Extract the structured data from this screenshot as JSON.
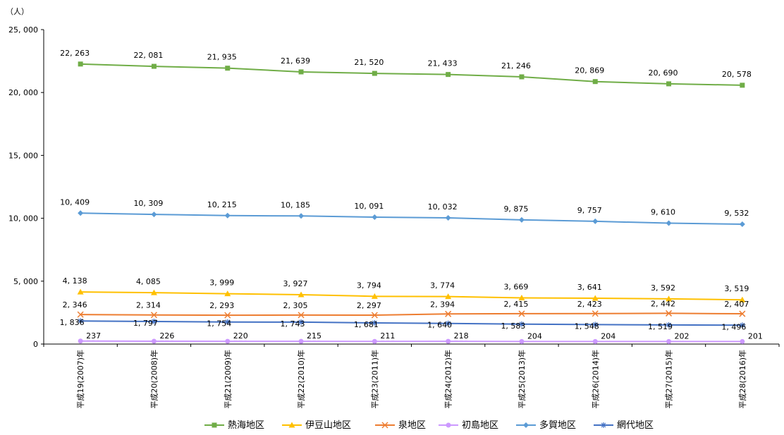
{
  "chart_data": {
    "type": "line",
    "unit_label": "（人）",
    "title": "",
    "xlabel": "",
    "ylabel": "",
    "ylim": [
      0,
      25000
    ],
    "yticks": [
      "0",
      "5, 000",
      "10, 000",
      "15, 000",
      "20, 000",
      "25, 000"
    ],
    "ytick_values": [
      0,
      5000,
      10000,
      15000,
      20000,
      25000
    ],
    "grid": false,
    "legend_position": "bottom",
    "categories": [
      "平成19(2007)年",
      "平成20(2008)年",
      "平成21(2009)年",
      "平成22(2010)年",
      "平成23(2011)年",
      "平成24(2012)年",
      "平成25(2013)年",
      "平成26(2014)年",
      "平成27(2015)年",
      "平成28(2016)年"
    ],
    "series": [
      {
        "name": "熱海地区",
        "color": "#70ad47",
        "marker": "square",
        "values": [
          22263,
          22081,
          21935,
          21639,
          21520,
          21433,
          21246,
          20869,
          20690,
          20578
        ],
        "labels": [
          "22, 263",
          "22, 081",
          "21, 935",
          "21, 639",
          "21, 520",
          "21, 433",
          "21, 246",
          "20, 869",
          "20, 690",
          "20, 578"
        ]
      },
      {
        "name": "伊豆山地区",
        "color": "#ffc000",
        "marker": "triangle",
        "values": [
          4138,
          4085,
          3999,
          3927,
          3794,
          3774,
          3669,
          3641,
          3592,
          3519
        ],
        "labels": [
          "4, 138",
          "4, 085",
          "3, 999",
          "3, 927",
          "3, 794",
          "3, 774",
          "3, 669",
          "3, 641",
          "3, 592",
          "3, 519"
        ]
      },
      {
        "name": "泉地区",
        "color": "#ed7d31",
        "marker": "x",
        "values": [
          2346,
          2314,
          2293,
          2305,
          2297,
          2394,
          2415,
          2423,
          2442,
          2407
        ],
        "labels": [
          "2, 346",
          "2, 314",
          "2, 293",
          "2, 305",
          "2, 297",
          "2, 394",
          "2, 415",
          "2, 423",
          "2, 442",
          "2, 407"
        ]
      },
      {
        "name": "初島地区",
        "color": "#cc99ff",
        "marker": "circle",
        "values": [
          237,
          226,
          220,
          215,
          211,
          218,
          204,
          204,
          202,
          201
        ],
        "labels": [
          "237",
          "226",
          "220",
          "215",
          "211",
          "218",
          "204",
          "204",
          "202",
          "201"
        ]
      },
      {
        "name": "多賀地区",
        "color": "#5b9bd5",
        "marker": "diamond",
        "values": [
          10409,
          10309,
          10215,
          10185,
          10091,
          10032,
          9875,
          9757,
          9610,
          9532
        ],
        "labels": [
          "10, 409",
          "10, 309",
          "10, 215",
          "10, 185",
          "10, 091",
          "10, 032",
          "9, 875",
          "9, 757",
          "9, 610",
          "9, 532"
        ]
      },
      {
        "name": "網代地区",
        "color": "#4472c4",
        "marker": "star",
        "values": [
          1836,
          1797,
          1754,
          1743,
          1681,
          1640,
          1583,
          1548,
          1519,
          1496
        ],
        "labels": [
          "1, 836",
          "1, 797",
          "1, 754",
          "1, 743",
          "1, 681",
          "1, 640",
          "1, 583",
          "1, 548",
          "1, 519",
          "1, 496"
        ]
      }
    ]
  }
}
